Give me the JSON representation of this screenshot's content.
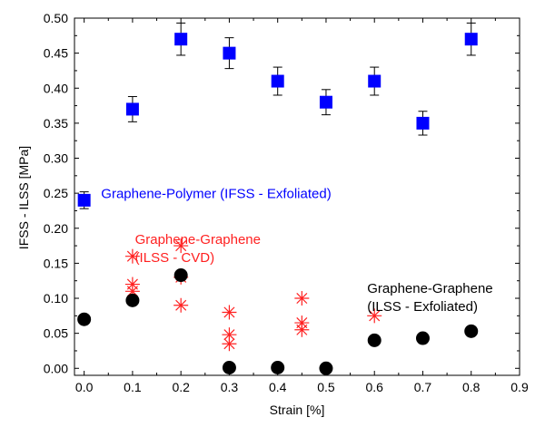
{
  "chart_data": {
    "type": "scatter",
    "title": "",
    "xlabel": "Strain [%]",
    "ylabel": "IFSS - ILSS [MPa]",
    "xlim": [
      -0.02,
      0.9
    ],
    "ylim": [
      -0.01,
      0.5
    ],
    "xticks": [
      0.0,
      0.1,
      0.2,
      0.3,
      0.4,
      0.5,
      0.6,
      0.7,
      0.8,
      0.9
    ],
    "xtick_labels": [
      "0.0",
      "0.1",
      "0.2",
      "0.3",
      "0.4",
      "0.5",
      "0.6",
      "0.7",
      "0.8",
      "0.9"
    ],
    "yticks": [
      0.0,
      0.05,
      0.1,
      0.15,
      0.2,
      0.25,
      0.3,
      0.35,
      0.4,
      0.45,
      0.5
    ],
    "ytick_labels": [
      "0.00",
      "0.05",
      "0.10",
      "0.15",
      "0.20",
      "0.25",
      "0.30",
      "0.35",
      "0.40",
      "0.45",
      "0.50"
    ],
    "grid": false,
    "legend": "none",
    "series": [
      {
        "marker": "square",
        "color": "#0000ff",
        "x": [
          0.0,
          0.1,
          0.2,
          0.3,
          0.4,
          0.5,
          0.6,
          0.7,
          0.8
        ],
        "y": [
          0.24,
          0.37,
          0.47,
          0.45,
          0.41,
          0.38,
          0.41,
          0.35,
          0.47
        ],
        "yerr": [
          0.012,
          0.018,
          0.023,
          0.022,
          0.02,
          0.018,
          0.02,
          0.017,
          0.023
        ]
      },
      {
        "marker": "asterisk",
        "color": "#ff2020",
        "x": [
          0.1,
          0.1,
          0.1,
          0.2,
          0.2,
          0.2,
          0.3,
          0.3,
          0.3,
          0.45,
          0.45,
          0.45,
          0.6
        ],
        "y": [
          0.16,
          0.12,
          0.11,
          0.175,
          0.13,
          0.09,
          0.08,
          0.048,
          0.035,
          0.1,
          0.065,
          0.055,
          0.075
        ]
      },
      {
        "marker": "circle",
        "color": "#000000",
        "x": [
          0.0,
          0.1,
          0.2,
          0.3,
          0.4,
          0.5,
          0.6,
          0.7,
          0.8
        ],
        "y": [
          0.07,
          0.097,
          0.133,
          0.001,
          0.001,
          0.0,
          0.04,
          0.043,
          0.053
        ]
      }
    ],
    "annotations": [
      {
        "lines": [
          "Graphene-Polymer (IFSS - Exfoliated)"
        ],
        "color": "#0000ff",
        "x": 0.035,
        "y": 0.243
      },
      {
        "lines": [
          "Graphene-Graphene",
          "(ILSS - CVD)"
        ],
        "color": "#ff2020",
        "x": 0.105,
        "y": 0.178
      },
      {
        "lines": [
          "Graphene-Graphene",
          "(ILSS - Exfoliated)"
        ],
        "color": "#000000",
        "x": 0.585,
        "y": 0.108
      }
    ]
  }
}
